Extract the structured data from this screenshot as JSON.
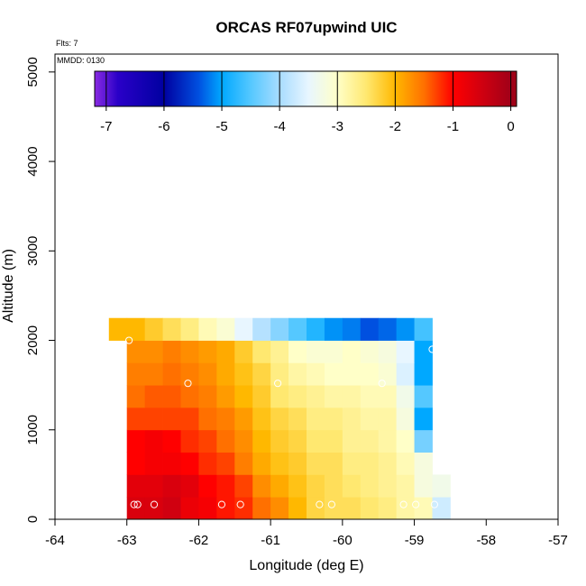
{
  "chart_data": {
    "type": "heatmap",
    "title": "ORCAS RF07upwind UIC",
    "annotations": {
      "flights": "Flts: 7",
      "date": "MMDD: 0130"
    },
    "xlabel": "Longitude (deg E)",
    "ylabel": "Altitude (m)",
    "xlim": [
      -64,
      -57
    ],
    "ylim": [
      0,
      5200
    ],
    "x_ticks": [
      "-64",
      "-63",
      "-62",
      "-61",
      "-60",
      "-59",
      "-58",
      "-57"
    ],
    "y_ticks": [
      "0",
      "1000",
      "2000",
      "3000",
      "4000",
      "5000"
    ],
    "colorbar": {
      "range": [
        -7.2,
        0.1
      ],
      "ticks": [
        "-7",
        "-6",
        "-5",
        "-4",
        "-3",
        "-2",
        "-1",
        "0"
      ],
      "stops": [
        {
          "v": -7.2,
          "c": "#8a2be2"
        },
        {
          "v": -6.8,
          "c": "#2a00c8"
        },
        {
          "v": -6.0,
          "c": "#0000a0"
        },
        {
          "v": -5.4,
          "c": "#0050e0"
        },
        {
          "v": -5.0,
          "c": "#00a8ff"
        },
        {
          "v": -4.5,
          "c": "#55c8ff"
        },
        {
          "v": -4.0,
          "c": "#a8dcff"
        },
        {
          "v": -3.5,
          "c": "#e8f6ff"
        },
        {
          "v": -3.0,
          "c": "#ffffc8"
        },
        {
          "v": -2.5,
          "c": "#ffe870"
        },
        {
          "v": -2.0,
          "c": "#ffb800"
        },
        {
          "v": -1.5,
          "c": "#ff7000"
        },
        {
          "v": -1.0,
          "c": "#ff0000"
        },
        {
          "v": -0.5,
          "c": "#d00010"
        },
        {
          "v": 0.0,
          "c": "#a00018"
        },
        {
          "v": 0.1,
          "c": "#a00018"
        }
      ]
    },
    "grid": {
      "x0": -63.25,
      "dx": 0.25,
      "dy": 250,
      "rows": [
        [
          null,
          -0.6,
          -0.6,
          -0.5,
          -0.8,
          -0.9,
          -1.1,
          -1.2,
          -1.5,
          -1.7,
          -2.0,
          -2.3,
          -2.4,
          -2.4,
          -2.5,
          -2.6,
          -2.8,
          -2.9,
          -3.7,
          null
        ],
        [
          null,
          -0.7,
          -0.7,
          -0.6,
          -0.7,
          -1.0,
          -1.1,
          -1.3,
          -1.7,
          -1.9,
          -2.1,
          -2.3,
          -2.4,
          -2.5,
          -2.6,
          -2.7,
          -2.8,
          -3.2,
          -3.3,
          null
        ],
        [
          null,
          -1.0,
          -0.9,
          -0.9,
          -1.0,
          -1.2,
          -1.3,
          -1.6,
          -1.9,
          -2.1,
          -2.2,
          -2.4,
          -2.4,
          -2.6,
          -2.6,
          -2.7,
          -2.9,
          -3.2,
          null,
          null
        ],
        [
          null,
          -1.0,
          -0.9,
          -1.0,
          -1.2,
          -1.3,
          -1.5,
          -1.7,
          -2.0,
          -2.2,
          -2.3,
          -2.5,
          -2.5,
          -2.7,
          -2.7,
          -2.8,
          -3.0,
          -4.3,
          null,
          null
        ],
        [
          null,
          -1.3,
          -1.3,
          -1.3,
          -1.3,
          -1.5,
          -1.6,
          -1.8,
          -2.1,
          -2.3,
          -2.4,
          -2.6,
          -2.6,
          -2.7,
          -2.8,
          -2.8,
          -3.2,
          -5.0,
          null,
          null
        ],
        [
          null,
          -1.5,
          -1.4,
          -1.4,
          -1.5,
          -1.6,
          -1.8,
          -2.0,
          -2.2,
          -2.5,
          -2.6,
          -2.7,
          -2.8,
          -2.8,
          -2.9,
          -2.9,
          -3.3,
          -4.5,
          null,
          null
        ],
        [
          null,
          -1.6,
          -1.6,
          -1.5,
          -1.6,
          -1.7,
          -1.9,
          -2.1,
          -2.3,
          -2.6,
          -2.8,
          -2.9,
          -3.0,
          -3.0,
          -3.0,
          -3.1,
          -3.6,
          -5.0,
          null,
          null
        ],
        [
          null,
          -1.7,
          -1.7,
          -1.6,
          -1.7,
          -1.8,
          -1.9,
          -2.2,
          -2.5,
          -2.7,
          -3.0,
          -3.1,
          -3.1,
          -3.0,
          -3.1,
          -3.2,
          -3.5,
          -5.0,
          null,
          null
        ],
        [
          -2.0,
          -2.0,
          -2.2,
          -2.4,
          -2.6,
          -2.9,
          -3.1,
          -3.5,
          -3.9,
          -4.2,
          -4.5,
          -4.8,
          -5.1,
          -5.2,
          -5.4,
          -5.3,
          -5.1,
          -4.6,
          null,
          null
        ]
      ]
    },
    "points": [
      [
        -62.97,
        2000
      ],
      [
        -62.15,
        1520
      ],
      [
        -60.9,
        1520
      ],
      [
        -59.45,
        1520
      ],
      [
        -58.75,
        1900
      ],
      [
        -62.9,
        165
      ],
      [
        -62.85,
        165
      ],
      [
        -62.62,
        165
      ],
      [
        -61.68,
        165
      ],
      [
        -61.42,
        165
      ],
      [
        -60.32,
        165
      ],
      [
        -60.15,
        165
      ],
      [
        -59.15,
        165
      ],
      [
        -58.98,
        165
      ],
      [
        -58.72,
        165
      ]
    ]
  }
}
